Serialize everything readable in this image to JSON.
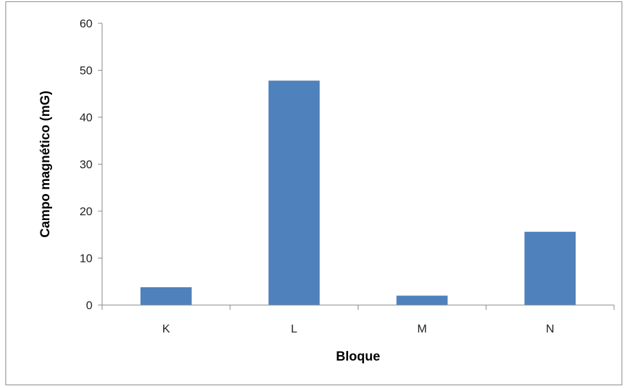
{
  "chart_data": {
    "type": "bar",
    "categories": [
      "K",
      "L",
      "M",
      "N"
    ],
    "values": [
      3.8,
      47.8,
      2.0,
      15.6
    ],
    "xlabel": "Bloque",
    "ylabel": "Campo magnético (mG)",
    "ylim": [
      0,
      60
    ],
    "yticks": [
      "0",
      "10",
      "20",
      "30",
      "40",
      "50",
      "60"
    ],
    "grid": false,
    "legend": "none",
    "colors": {
      "bar": "#4F81BD",
      "axis": "#868686"
    }
  }
}
